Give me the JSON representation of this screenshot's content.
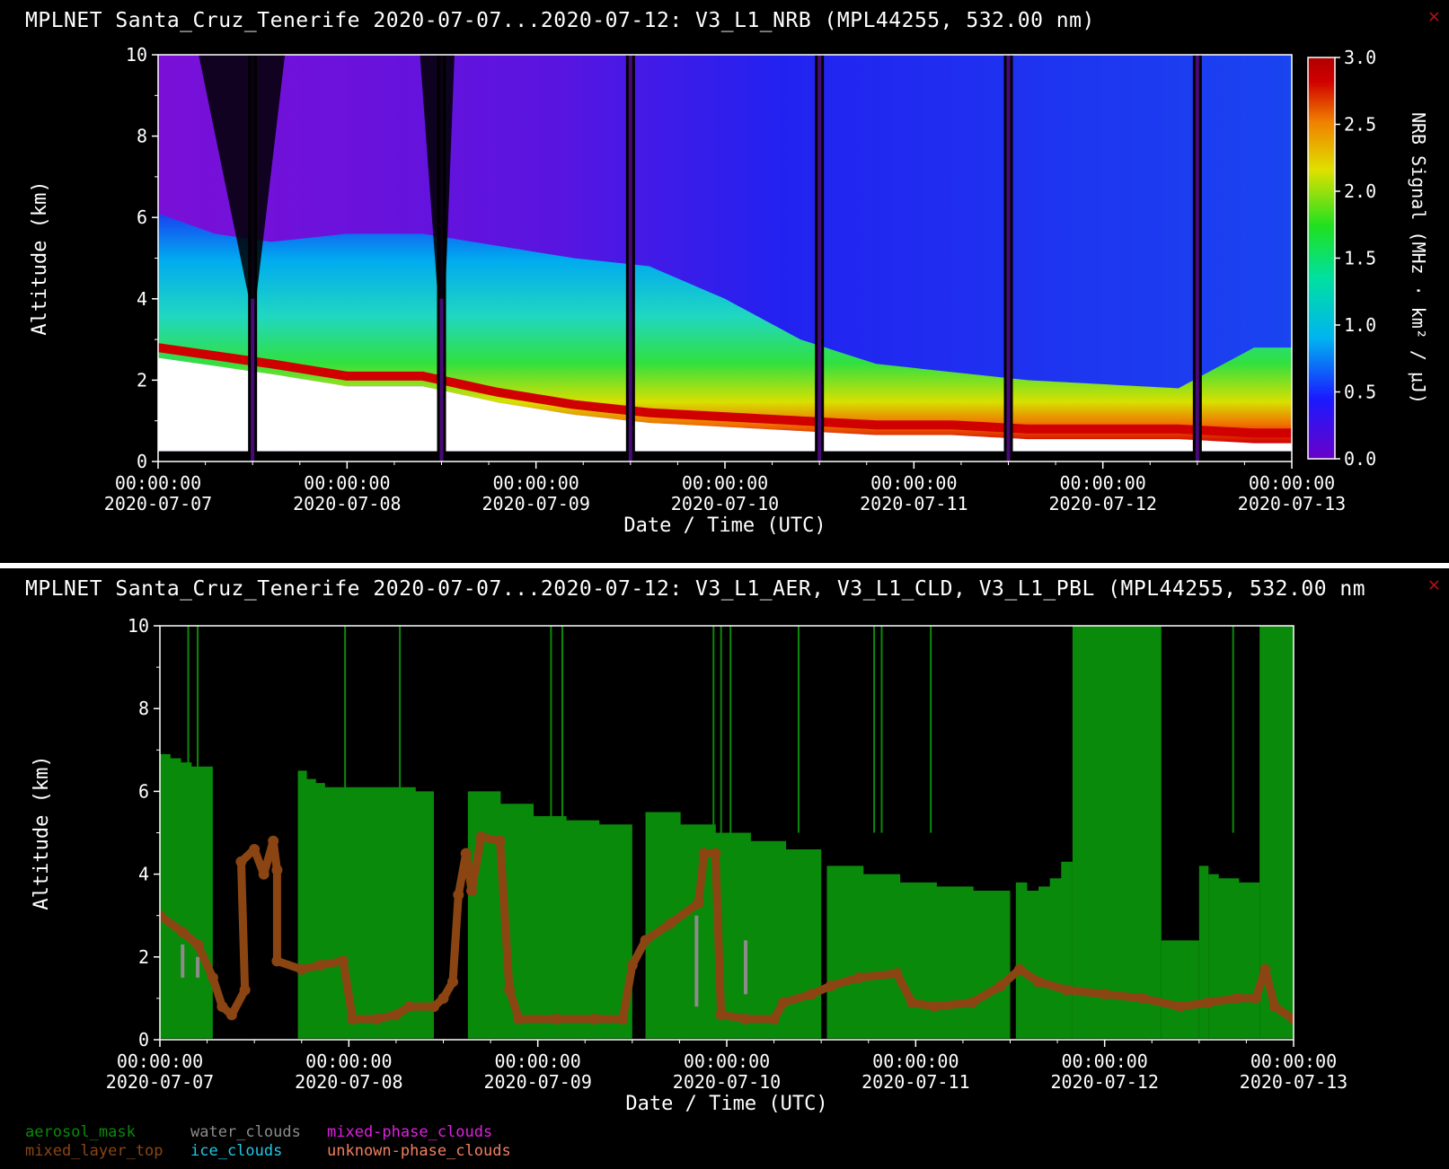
{
  "panels": [
    {
      "title": "MPLNET Santa_Cruz_Tenerife 2020-07-07...2020-07-12:  V3_L1_NRB  (MPL44255, 532.00 nm)",
      "close_icon": "close-x-icon"
    },
    {
      "title": "MPLNET Santa_Cruz_Tenerife 2020-07-07...2020-07-12:  V3_L1_AER, V3_L1_CLD, V3_L1_PBL  (MPL44255, 532.00 nm",
      "close_icon": "close-x-icon"
    }
  ],
  "colors": {
    "aerosol_mask": "#0a8a0a",
    "mixed_layer_top": "#8b4513",
    "water_clouds": "#8c8c8c",
    "ice_clouds": "#22c8e6",
    "mixed_phase_clouds": "#e020e0",
    "unknown_phase_clouds": "#f08060"
  },
  "chart_data": [
    {
      "type": "heatmap",
      "xlabel": "Date / Time (UTC)",
      "ylabel": "Altitude (km)",
      "ylim": [
        0,
        10
      ],
      "yticks": [
        "0",
        "2",
        "4",
        "6",
        "8",
        "10"
      ],
      "xticks": [
        {
          "time": "00:00:00",
          "date": "2020-07-07"
        },
        {
          "time": "00:00:00",
          "date": "2020-07-08"
        },
        {
          "time": "00:00:00",
          "date": "2020-07-09"
        },
        {
          "time": "00:00:00",
          "date": "2020-07-10"
        },
        {
          "time": "00:00:00",
          "date": "2020-07-11"
        },
        {
          "time": "00:00:00",
          "date": "2020-07-12"
        },
        {
          "time": "00:00:00",
          "date": "2020-07-13"
        }
      ],
      "colorbar": {
        "label": "NRB Signal (MHz · km² / μJ)",
        "range": [
          0.0,
          3.0
        ],
        "ticks": [
          "3.0",
          "2.5",
          "2.0",
          "1.5",
          "1.0",
          "0.5",
          "0.0"
        ]
      },
      "data_gaps_days": [
        0.5,
        1.5,
        2.5,
        3.5,
        4.5,
        5.5
      ],
      "layer_top_km": [
        [
          0.0,
          2.9
        ],
        [
          0.3,
          2.7
        ],
        [
          0.6,
          2.5
        ],
        [
          1.0,
          2.2
        ],
        [
          1.4,
          2.2
        ],
        [
          1.8,
          1.8
        ],
        [
          2.2,
          1.5
        ],
        [
          2.6,
          1.3
        ],
        [
          3.0,
          1.2
        ],
        [
          3.4,
          1.1
        ],
        [
          3.8,
          1.0
        ],
        [
          4.2,
          1.0
        ],
        [
          4.6,
          0.9
        ],
        [
          5.0,
          0.9
        ],
        [
          5.4,
          0.9
        ],
        [
          5.8,
          0.8
        ],
        [
          6.0,
          0.8
        ]
      ],
      "aerosol_top_km": [
        [
          0.0,
          6.1
        ],
        [
          0.3,
          5.6
        ],
        [
          0.6,
          5.4
        ],
        [
          1.0,
          5.6
        ],
        [
          1.4,
          5.6
        ],
        [
          1.8,
          5.3
        ],
        [
          2.2,
          5.0
        ],
        [
          2.6,
          4.8
        ],
        [
          3.0,
          4.0
        ],
        [
          3.4,
          3.0
        ],
        [
          3.8,
          2.4
        ],
        [
          4.2,
          2.2
        ],
        [
          4.6,
          2.0
        ],
        [
          5.0,
          1.9
        ],
        [
          5.4,
          1.8
        ],
        [
          5.8,
          2.8
        ],
        [
          6.0,
          2.8
        ]
      ]
    },
    {
      "type": "area",
      "xlabel": "Date / Time (UTC)",
      "ylabel": "Altitude (km)",
      "ylim": [
        0,
        10
      ],
      "yticks": [
        "0",
        "2",
        "4",
        "6",
        "8",
        "10"
      ],
      "xticks": [
        {
          "time": "00:00:00",
          "date": "2020-07-07"
        },
        {
          "time": "00:00:00",
          "date": "2020-07-08"
        },
        {
          "time": "00:00:00",
          "date": "2020-07-09"
        },
        {
          "time": "00:00:00",
          "date": "2020-07-10"
        },
        {
          "time": "00:00:00",
          "date": "2020-07-11"
        },
        {
          "time": "00:00:00",
          "date": "2020-07-12"
        },
        {
          "time": "00:00:00",
          "date": "2020-07-13"
        }
      ],
      "aerosol_mask_segments": [
        {
          "start": 0.0,
          "end": 0.28,
          "tops": [
            6.9,
            6.8,
            6.7,
            6.6,
            6.6
          ]
        },
        {
          "start": 0.73,
          "end": 0.97,
          "tops": [
            6.5,
            6.3,
            6.2,
            6.1,
            6.1
          ]
        },
        {
          "start": 0.97,
          "end": 1.45,
          "tops": [
            6.1,
            6.1,
            6.1,
            6.1,
            6.0
          ]
        },
        {
          "start": 1.63,
          "end": 2.5,
          "tops": [
            6.0,
            5.7,
            5.4,
            5.3,
            5.2
          ]
        },
        {
          "start": 2.57,
          "end": 3.5,
          "tops": [
            5.5,
            5.2,
            5.0,
            4.8,
            4.6
          ]
        },
        {
          "start": 3.53,
          "end": 4.5,
          "tops": [
            4.2,
            4.0,
            3.8,
            3.7,
            3.6
          ]
        },
        {
          "start": 4.53,
          "end": 4.83,
          "tops": [
            3.8,
            3.6,
            3.7,
            3.9,
            4.3
          ]
        },
        {
          "start": 4.83,
          "end": 5.3,
          "tops": [
            10.0,
            10.0,
            10.0,
            10.0,
            10.0
          ]
        },
        {
          "start": 5.3,
          "end": 5.5,
          "tops": [
            2.4,
            2.4,
            2.4,
            2.4,
            2.4
          ]
        },
        {
          "start": 5.5,
          "end": 5.55,
          "tops": [
            4.2,
            4.2,
            4.2,
            4.2,
            4.2
          ]
        },
        {
          "start": 5.55,
          "end": 5.82,
          "tops": [
            4.0,
            3.9,
            3.9,
            3.8,
            3.8
          ]
        },
        {
          "start": 5.82,
          "end": 6.0,
          "tops": [
            10.0,
            10.0,
            10.0,
            10.0,
            10.0
          ]
        }
      ],
      "aerosol_spikes": [
        0.15,
        0.2,
        0.98,
        1.27,
        2.07,
        2.13,
        2.93,
        2.97,
        3.02,
        3.38,
        3.78,
        3.82,
        4.08,
        5.1,
        5.68
      ],
      "mixed_layer_top": [
        [
          0.0,
          3.0
        ],
        [
          0.12,
          2.6
        ],
        [
          0.2,
          2.3
        ],
        [
          0.28,
          1.5
        ],
        [
          0.33,
          0.8
        ],
        [
          0.38,
          0.6
        ],
        [
          0.45,
          1.2
        ],
        [
          0.43,
          4.3
        ],
        [
          0.5,
          4.6
        ],
        [
          0.55,
          4.0
        ],
        [
          0.6,
          4.8
        ],
        [
          0.62,
          4.1
        ],
        [
          0.62,
          1.9
        ],
        [
          0.75,
          1.7
        ],
        [
          0.85,
          1.8
        ],
        [
          0.97,
          1.9
        ],
        [
          1.02,
          0.5
        ],
        [
          1.15,
          0.5
        ],
        [
          1.25,
          0.6
        ],
        [
          1.32,
          0.8
        ],
        [
          1.45,
          0.8
        ],
        [
          1.5,
          1.0
        ],
        [
          1.55,
          1.4
        ],
        [
          1.58,
          3.5
        ],
        [
          1.62,
          4.5
        ],
        [
          1.65,
          3.6
        ],
        [
          1.7,
          4.9
        ],
        [
          1.8,
          4.8
        ],
        [
          1.85,
          1.2
        ],
        [
          1.9,
          0.5
        ],
        [
          2.1,
          0.5
        ],
        [
          2.3,
          0.5
        ],
        [
          2.45,
          0.5
        ],
        [
          2.5,
          1.8
        ],
        [
          2.57,
          2.4
        ],
        [
          2.7,
          2.8
        ],
        [
          2.85,
          3.3
        ],
        [
          2.88,
          4.5
        ],
        [
          2.94,
          4.5
        ],
        [
          2.97,
          0.6
        ],
        [
          3.1,
          0.5
        ],
        [
          3.25,
          0.5
        ],
        [
          3.3,
          0.9
        ],
        [
          3.45,
          1.1
        ],
        [
          3.55,
          1.3
        ],
        [
          3.7,
          1.5
        ],
        [
          3.9,
          1.6
        ],
        [
          3.98,
          0.9
        ],
        [
          4.1,
          0.8
        ],
        [
          4.3,
          0.9
        ],
        [
          4.45,
          1.3
        ],
        [
          4.55,
          1.7
        ],
        [
          4.65,
          1.4
        ],
        [
          4.8,
          1.2
        ],
        [
          5.0,
          1.1
        ],
        [
          5.2,
          1.0
        ],
        [
          5.4,
          0.8
        ],
        [
          5.55,
          0.9
        ],
        [
          5.7,
          1.0
        ],
        [
          5.8,
          1.0
        ],
        [
          5.85,
          1.7
        ],
        [
          5.9,
          0.8
        ],
        [
          6.0,
          0.5
        ]
      ],
      "water_clouds": [
        [
          0.12,
          1.5,
          2.3
        ],
        [
          0.2,
          1.5,
          2.0
        ],
        [
          2.84,
          0.8,
          3.0
        ],
        [
          3.1,
          1.1,
          2.4
        ]
      ],
      "legend": [
        {
          "key": "aerosol_mask",
          "label": "aerosol_mask"
        },
        {
          "key": "water_clouds",
          "label": "water_clouds"
        },
        {
          "key": "mixed_phase_clouds",
          "label": "mixed-phase_clouds"
        },
        {
          "key": "mixed_layer_top",
          "label": "mixed_layer_top"
        },
        {
          "key": "ice_clouds",
          "label": "ice_clouds"
        },
        {
          "key": "unknown_phase_clouds",
          "label": "unknown-phase_clouds"
        }
      ]
    }
  ]
}
